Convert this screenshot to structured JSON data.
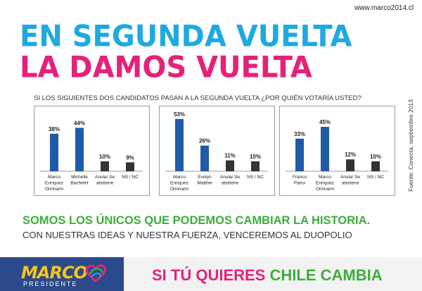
{
  "site_url": "www.marco2014.cl",
  "headline": {
    "line1": "EN SEGUNDA VUELTA",
    "line2": "LA DAMOS VUELTA"
  },
  "question": "SI LOS SIGUIENTES DOS CANDIDATOS PASAN A LA SEGUNDA VUELTA ¿POR QUIÉN VOTARÍA USTED?",
  "source": "Fuente: Conecta, septiembre 2013",
  "slogan": {
    "line1": "SOMOS LOS ÚNICOS QUE PODEMOS CAMBIAR LA HISTORIA.",
    "line2": "CON NUESTRAS IDEAS Y NUESTRA FUERZA, VENCEREMOS AL DUOPOLIO"
  },
  "footer": {
    "logo_text": "MARCO",
    "logo_sub": "PRESIDENTE",
    "tagline_part1": "SI TÚ QUIERES ",
    "tagline_part2": "CHILE CAMBIA"
  },
  "colors": {
    "blue": "#1ea9e1",
    "pink": "#e6217a",
    "green": "#3dae3b",
    "bar_blue": "#1f5aa6",
    "bar_dark": "#333333",
    "navy": "#2b4a8c",
    "yellow": "#f5c518"
  },
  "chart_data": [
    {
      "type": "bar",
      "categories": [
        [
          "Marco",
          "Enríquez",
          "Ominami"
        ],
        [
          "Michelle",
          "Bachelet"
        ],
        [
          "Anula/ Se",
          "abstiene"
        ],
        [
          "NS / NC"
        ]
      ],
      "values": [
        38,
        44,
        10,
        9
      ],
      "value_labels": [
        "38%",
        "44%",
        "10%",
        "9%"
      ],
      "bar_colors": [
        "#1f5aa6",
        "#1f5aa6",
        "#333333",
        "#333333"
      ],
      "ylim": [
        0,
        60
      ]
    },
    {
      "type": "bar",
      "categories": [
        [
          "Marco",
          "Enríquez",
          "Ominami"
        ],
        [
          "Evelyn",
          "Matthei"
        ],
        [
          "Anula/ Se",
          "abstiene"
        ],
        [
          "NS / NC"
        ]
      ],
      "values": [
        53,
        26,
        11,
        10
      ],
      "value_labels": [
        "53%",
        "26%",
        "11%",
        "10%"
      ],
      "bar_colors": [
        "#1f5aa6",
        "#1f5aa6",
        "#333333",
        "#333333"
      ],
      "ylim": [
        0,
        60
      ]
    },
    {
      "type": "bar",
      "categories": [
        [
          "Franco",
          "Parisi"
        ],
        [
          "Marco",
          "Enríquez",
          "Ominami"
        ],
        [
          "Anula/ Se",
          "abstiene"
        ],
        [
          "NS / NC"
        ]
      ],
      "values": [
        33,
        45,
        12,
        10
      ],
      "value_labels": [
        "33%",
        "45%",
        "12%",
        "10%"
      ],
      "bar_colors": [
        "#1f5aa6",
        "#1f5aa6",
        "#333333",
        "#333333"
      ],
      "ylim": [
        0,
        60
      ]
    }
  ]
}
